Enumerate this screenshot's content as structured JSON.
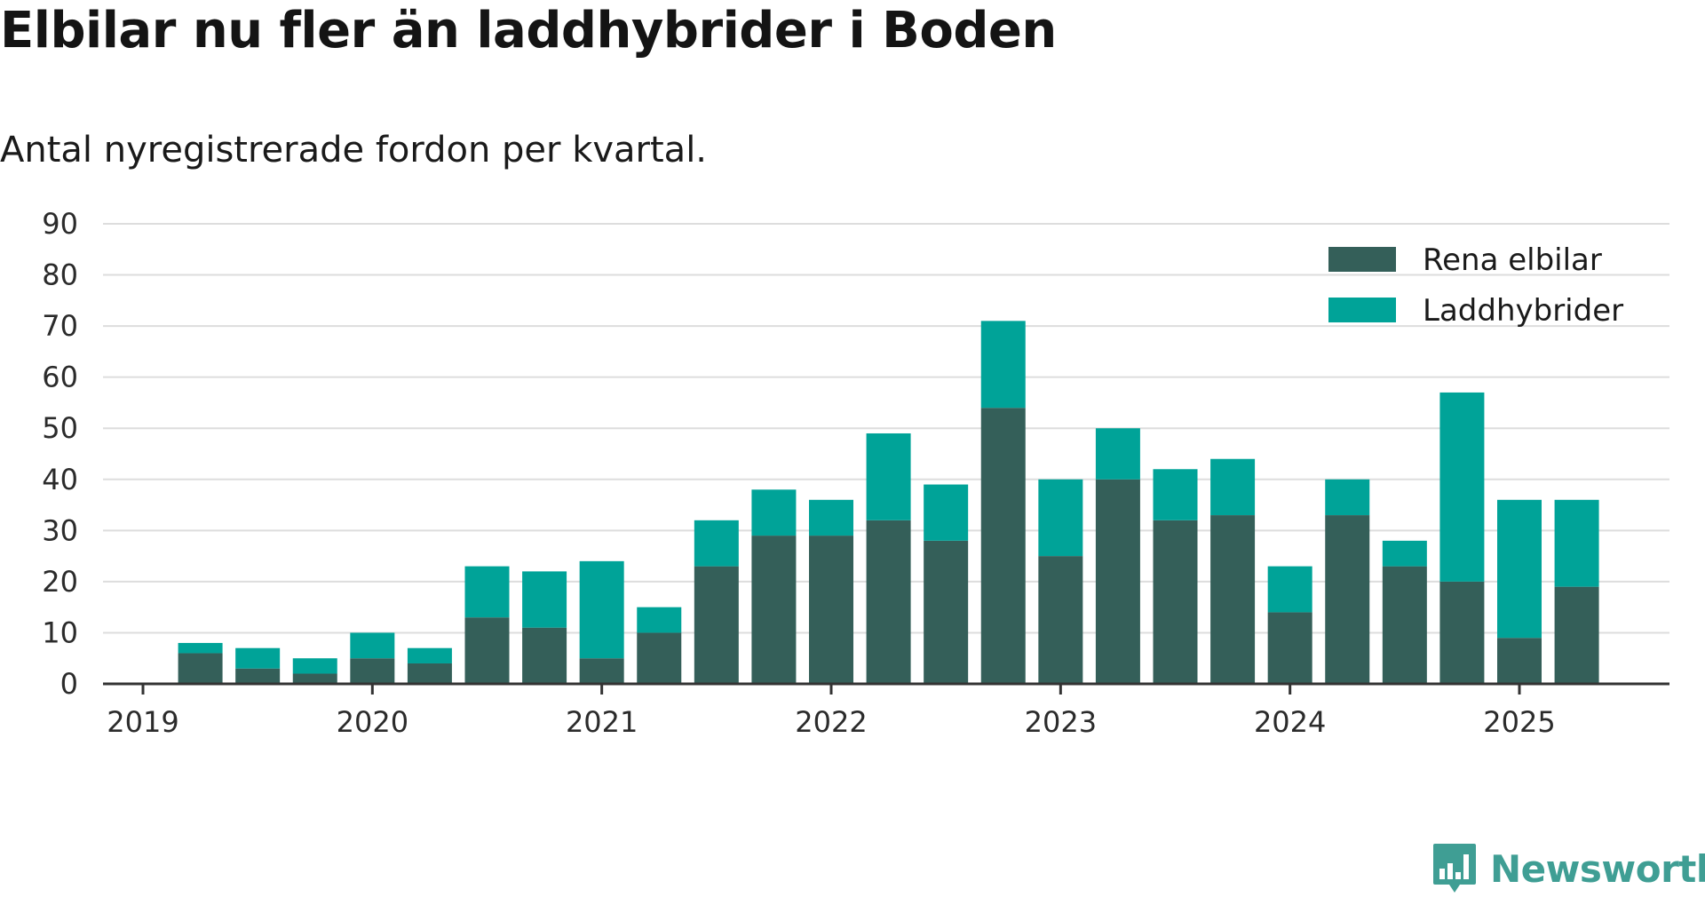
{
  "title": "Elbilar nu fler än laddhybrider i Boden",
  "subtitle": "Antal nyregistrerade fordon per kvartal.",
  "brand": {
    "name": "Newsworthy",
    "logo_icon": "bar-chart-speech-bubble-icon"
  },
  "colors": {
    "elbilar": "#345f59",
    "laddhybrider": "#00a398",
    "grid": "#dddddd",
    "axis": "#333333"
  },
  "chart_data": {
    "type": "bar",
    "stacked": true,
    "x_tick_labels": [
      "2019",
      "2020",
      "2021",
      "2022",
      "2023",
      "2024",
      "2025"
    ],
    "categories": [
      "2019 Q2",
      "2019 Q3",
      "2019 Q4",
      "2020 Q1",
      "2020 Q2",
      "2020 Q3",
      "2020 Q4",
      "2021 Q1",
      "2021 Q2",
      "2021 Q3",
      "2021 Q4",
      "2022 Q1",
      "2022 Q2",
      "2022 Q3",
      "2022 Q4",
      "2023 Q1",
      "2023 Q2",
      "2023 Q3",
      "2023 Q4",
      "2024 Q1",
      "2024 Q2",
      "2024 Q3",
      "2024 Q4",
      "2025 Q1",
      "2025 Q2"
    ],
    "series": [
      {
        "name": "Rena elbilar",
        "color": "#345f59",
        "values": [
          6,
          3,
          2,
          5,
          4,
          13,
          11,
          5,
          10,
          23,
          29,
          29,
          32,
          28,
          54,
          25,
          40,
          32,
          33,
          14,
          33,
          23,
          20,
          9,
          19
        ]
      },
      {
        "name": "Laddhybrider",
        "color": "#00a398",
        "values": [
          2,
          4,
          3,
          5,
          3,
          10,
          11,
          19,
          5,
          9,
          9,
          7,
          17,
          11,
          17,
          15,
          10,
          10,
          11,
          9,
          7,
          5,
          37,
          27,
          17
        ]
      }
    ],
    "ylim": [
      0,
      90
    ],
    "y_ticks": [
      0,
      10,
      20,
      30,
      40,
      50,
      60,
      70,
      80,
      90
    ],
    "grid": true,
    "legend_position": "top-right",
    "xlabel": "",
    "ylabel": ""
  }
}
